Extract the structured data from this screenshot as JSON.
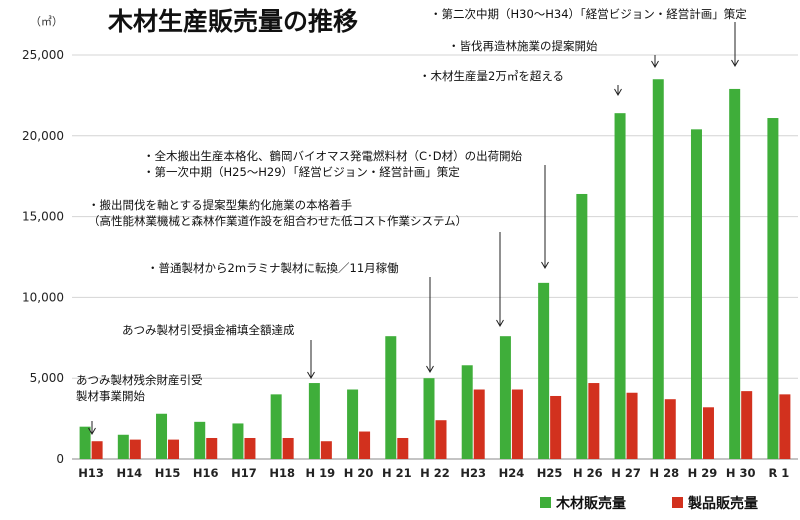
{
  "chart_data": {
    "type": "bar",
    "title": "木材生産販売量の推移",
    "unit": "（㎥）",
    "ylim": [
      0,
      25000
    ],
    "yticks": [
      0,
      5000,
      10000,
      15000,
      20000,
      25000
    ],
    "ytick_labels": [
      "0",
      "5,000",
      "10,000",
      "15,000",
      "20,000",
      "25,000"
    ],
    "grid": true,
    "legend_position": "bottom-right",
    "categories": [
      "H13",
      "H14",
      "H15",
      "H16",
      "H17",
      "H18",
      "H 19",
      "H 20",
      "H 21",
      "H 22",
      "H23",
      "H24",
      "H25",
      "H 26",
      "H 27",
      "H 28",
      "H 29",
      "H 30",
      "R 1"
    ],
    "series": [
      {
        "name": "木材販売量",
        "color": "#3fae3a",
        "values": [
          2000,
          1500,
          2800,
          2300,
          2200,
          4000,
          4700,
          4300,
          7600,
          5000,
          5800,
          7600,
          10900,
          16400,
          21400,
          23500,
          20400,
          22900,
          21100
        ]
      },
      {
        "name": "製品販売量",
        "color": "#d2311e",
        "values": [
          1100,
          1200,
          1200,
          1300,
          1300,
          1300,
          1100,
          1700,
          1300,
          2400,
          4300,
          4300,
          3900,
          4700,
          4100,
          3700,
          3200,
          4200,
          4000
        ]
      }
    ],
    "annotations": [
      {
        "lines": [
          "あつみ製材残余財産引受",
          "製材事業開始"
        ],
        "category_index": 0
      },
      {
        "lines": [
          "あつみ製材引受損金補填全額達成"
        ],
        "category_index": 6
      },
      {
        "lines": [
          "・普通製材から2mラミナ製材に転換／11月稼働"
        ],
        "category_index": 9
      },
      {
        "lines": [
          "・搬出間伐を軸とする提案型集約化施業の本格着手",
          "（高性能林業機械と森林作業道作設を組合わせた低コスト作業システム）"
        ],
        "category_index": 11
      },
      {
        "lines": [
          "・全木搬出生産本格化、鶴岡バイオマス発電燃料材（C･D材）の出荷開始",
          "・第一次中期（H25～H29）「経営ビジョン・経営計画」策定"
        ],
        "category_index": 12
      },
      {
        "lines": [
          "・木材生産量2万㎥を超える"
        ],
        "category_index": 14
      },
      {
        "lines": [
          "・皆伐再造林施業の提案開始"
        ],
        "category_index": 15
      },
      {
        "lines": [
          "・第二次中期（H30～H34）「経営ビジョン・経営計画」策定"
        ],
        "category_index": 17
      }
    ]
  }
}
